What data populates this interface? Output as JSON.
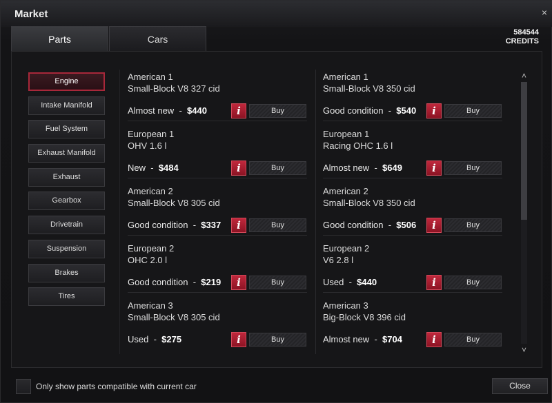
{
  "window": {
    "title": "Market",
    "close_glyph": "×"
  },
  "tabs": [
    {
      "label": "Parts",
      "active": true
    },
    {
      "label": "Cars",
      "active": false
    }
  ],
  "credits": {
    "amount": "584544",
    "label": "CREDITS"
  },
  "categories": [
    {
      "label": "Engine",
      "active": true
    },
    {
      "label": "Intake Manifold"
    },
    {
      "label": "Fuel System"
    },
    {
      "label": "Exhaust Manifold"
    },
    {
      "label": "Exhaust"
    },
    {
      "label": "Gearbox"
    },
    {
      "label": "Drivetrain"
    },
    {
      "label": "Suspension"
    },
    {
      "label": "Brakes"
    },
    {
      "label": "Tires"
    }
  ],
  "parts_left": [
    {
      "line1": "American 1",
      "line2": "Small-Block V8 327 cid",
      "condition": "Almost new",
      "price": "$440"
    },
    {
      "line1": "European 1",
      "line2": "OHV 1.6 l",
      "condition": "New",
      "price": "$484"
    },
    {
      "line1": "American 2",
      "line2": "Small-Block V8 305 cid",
      "condition": "Good condition",
      "price": "$337"
    },
    {
      "line1": "European 2",
      "line2": "OHC 2.0 l",
      "condition": "Good condition",
      "price": "$219"
    },
    {
      "line1": "American 3",
      "line2": "Small-Block V8 305 cid",
      "condition": "Used",
      "price": "$275"
    }
  ],
  "parts_right": [
    {
      "line1": "American 1",
      "line2": "Small-Block V8 350 cid",
      "condition": "Good condition",
      "price": "$540"
    },
    {
      "line1": "European 1",
      "line2": "Racing OHC 1.6 l",
      "condition": "Almost new",
      "price": "$649"
    },
    {
      "line1": "American 2",
      "line2": "Small-Block V8 350 cid",
      "condition": "Good condition",
      "price": "$506"
    },
    {
      "line1": "European 2",
      "line2": "V6 2.8 l",
      "condition": "Used",
      "price": "$440"
    },
    {
      "line1": "American 3",
      "line2": "Big-Block V8 396 cid",
      "condition": "Almost new",
      "price": "$704"
    }
  ],
  "labels": {
    "dash": "-",
    "info_glyph": "i",
    "buy": "Buy"
  },
  "scroll": {
    "up_glyph": "˄",
    "down_glyph": "˅"
  },
  "footer": {
    "filter_label": "Only show parts compatible with current car",
    "filter_checked": false,
    "close_label": "Close"
  },
  "colors": {
    "accent": "#b3263a",
    "background": "#161618"
  }
}
